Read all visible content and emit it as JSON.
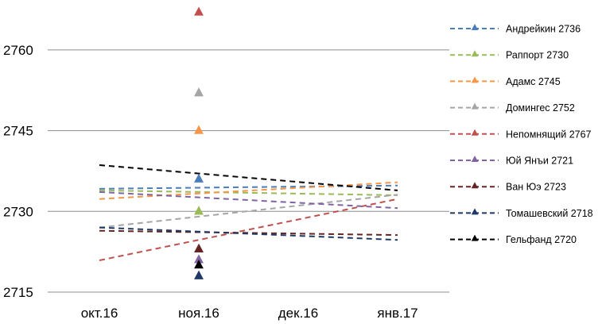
{
  "chart_data": {
    "type": "line",
    "title": "",
    "xlabel": "",
    "ylabel": "",
    "categories": [
      "окт.16",
      "ноя.16",
      "дек.16",
      "янв.17"
    ],
    "ylim": [
      2715,
      2770
    ],
    "yticks": [
      2715,
      2730,
      2745,
      2760
    ],
    "grid": true,
    "legend_position": "right",
    "marker_category": "ноя.16",
    "series": [
      {
        "name": "Андрейкин 2736",
        "marker_value": 2736,
        "trend": [
          2734.2,
          2734.8
        ],
        "color": "#4a7ebb"
      },
      {
        "name": "Раппорт 2730",
        "marker_value": 2730,
        "trend": [
          2733.9,
          2733.0
        ],
        "color": "#9bbb59"
      },
      {
        "name": "Адамс 2745",
        "marker_value": 2745,
        "trend": [
          2732.3,
          2735.4
        ],
        "color": "#f79646"
      },
      {
        "name": "Домингес 2752",
        "marker_value": 2752,
        "trend": [
          2727.0,
          2733.1
        ],
        "color": "#a5a5a5"
      },
      {
        "name": "Непомнящий 2767",
        "marker_value": 2767,
        "trend": [
          2720.9,
          2732.3
        ],
        "color": "#c0504d"
      },
      {
        "name": "Юй Янъи 2721",
        "marker_value": 2721,
        "trend": [
          2733.6,
          2730.6
        ],
        "color": "#8064a2"
      },
      {
        "name": "Ван Юэ 2723",
        "marker_value": 2723,
        "trend": [
          2726.4,
          2725.6
        ],
        "color": "#632523"
      },
      {
        "name": "Томашевский 2718",
        "marker_value": 2718,
        "trend": [
          2727.0,
          2724.7
        ],
        "color": "#1f3864"
      },
      {
        "name": "Гельфанд 2720",
        "marker_value": 2720,
        "trend": [
          2738.6,
          2733.9
        ],
        "color": "#000000"
      }
    ]
  }
}
